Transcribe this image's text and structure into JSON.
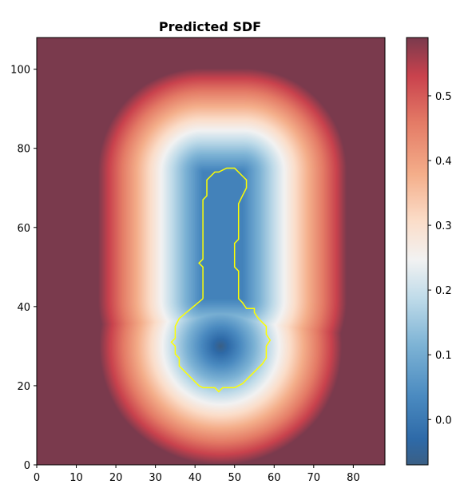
{
  "chart_data": {
    "type": "heatmap",
    "title": "Predicted SDF",
    "xlabel": "",
    "ylabel": "",
    "xlim": [
      0,
      88
    ],
    "ylim": [
      0,
      108
    ],
    "x_ticks": [
      "0",
      "10",
      "20",
      "30",
      "40",
      "50",
      "60",
      "70",
      "80"
    ],
    "y_ticks": [
      "0",
      "20",
      "40",
      "60",
      "80",
      "100"
    ],
    "colormap": "RdBu_r",
    "colorbar": {
      "min": -0.07,
      "max": 0.59,
      "ticks": [
        "0.0",
        "0.1",
        "0.2",
        "0.3",
        "0.4",
        "0.5"
      ]
    },
    "zero_contour_color": "#ffff00",
    "zero_contour": [
      [
        42,
        42
      ],
      [
        36,
        37
      ],
      [
        35,
        35
      ],
      [
        35,
        32
      ],
      [
        34,
        31
      ],
      [
        35,
        30
      ],
      [
        35,
        28
      ],
      [
        36,
        27
      ],
      [
        36,
        25
      ],
      [
        38,
        23
      ],
      [
        41,
        20
      ],
      [
        42,
        19.5
      ],
      [
        45,
        19.5
      ],
      [
        46,
        18.5
      ],
      [
        47,
        19.5
      ],
      [
        50,
        19.5
      ],
      [
        52,
        20.5
      ],
      [
        57,
        25.5
      ],
      [
        58,
        27
      ],
      [
        58,
        30
      ],
      [
        59,
        31.5
      ],
      [
        58,
        33
      ],
      [
        58,
        35
      ],
      [
        56,
        37
      ],
      [
        55,
        38.5
      ],
      [
        55,
        39.5
      ],
      [
        53,
        39.5
      ],
      [
        52,
        41
      ],
      [
        51,
        42
      ],
      [
        51,
        49
      ],
      [
        50,
        50
      ],
      [
        50,
        56
      ],
      [
        51,
        57
      ],
      [
        51,
        66
      ],
      [
        52,
        68
      ],
      [
        53,
        70
      ],
      [
        53,
        72
      ],
      [
        52,
        73
      ],
      [
        50,
        75
      ],
      [
        48,
        75
      ],
      [
        46,
        74
      ],
      [
        45,
        74
      ],
      [
        44,
        73
      ],
      [
        43,
        72
      ],
      [
        43,
        68
      ],
      [
        42,
        67
      ],
      [
        42,
        52
      ],
      [
        41,
        51
      ],
      [
        42,
        50
      ],
      [
        42,
        42
      ]
    ],
    "field_model": {
      "bulb_center": [
        46.5,
        30
      ],
      "stem_x": [
        42,
        52
      ],
      "stem_y": [
        42,
        74
      ],
      "bulb_inner_value": -0.07,
      "bulb_slope": 0.0215,
      "bulb_radius": 12,
      "stem_inner_value": 0.02,
      "stem_slope": 0.0215,
      "corner_extra": 0.03
    }
  }
}
